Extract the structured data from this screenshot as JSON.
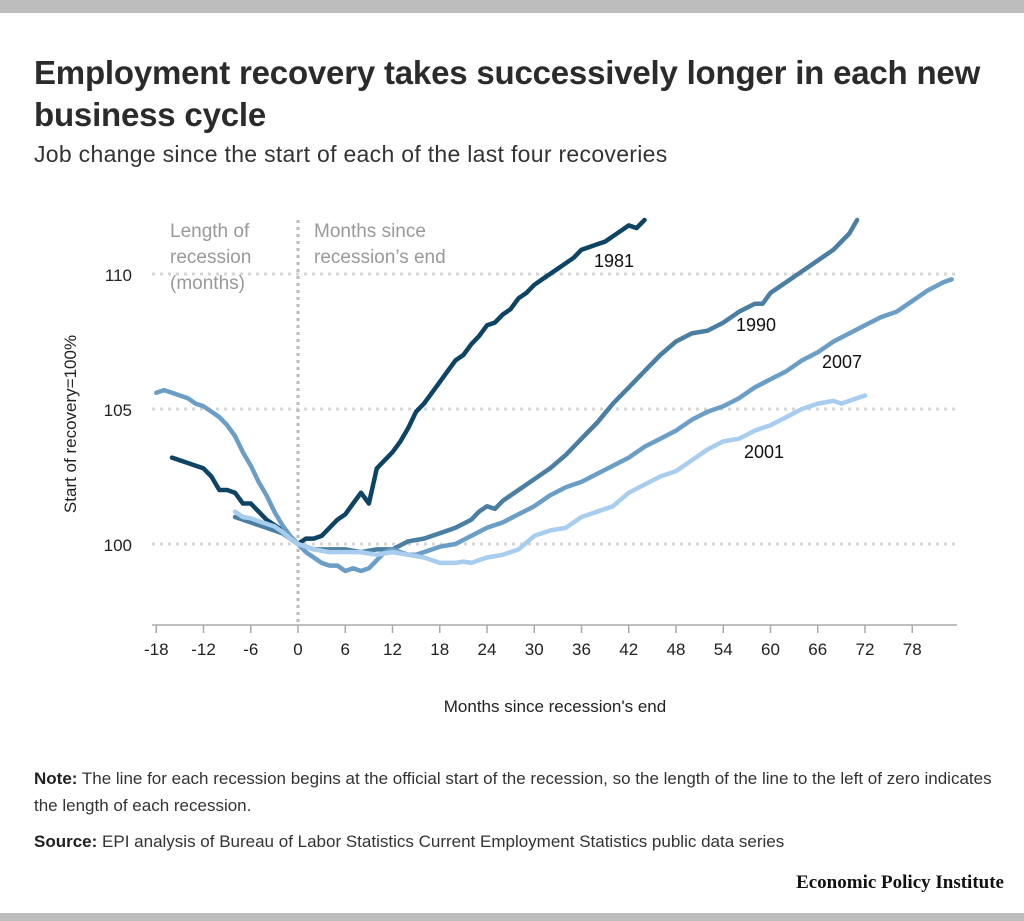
{
  "title": "Employment recovery takes successively longer in each new business cycle",
  "subtitle": "Job change since the start of each of the last four recoveries",
  "note_label": "Note:",
  "note_text": "The line for each recession begins at the official start of the recession, so the length of the line to the left of zero indicates the length of each recession.",
  "source_label": "Source:",
  "source_text": "EPI analysis of Bureau of Labor Statistics Current Employment Statistics public data series",
  "logo": "Economic Policy Institute",
  "chart_data": {
    "type": "line",
    "xlabel": "Months since recession's end",
    "ylabel": "Start of recovery=100%",
    "xlim": [
      -18,
      84
    ],
    "ylim": [
      97,
      112
    ],
    "xticks": [
      -18,
      -12,
      -6,
      0,
      6,
      12,
      18,
      24,
      30,
      36,
      42,
      48,
      54,
      60,
      66,
      72,
      78
    ],
    "yticks": [
      100,
      105,
      110
    ],
    "grid": "horizontal dotted",
    "annotations": {
      "left": [
        "Length of",
        "recession",
        "(months)"
      ],
      "right": [
        "Months since",
        "recession’s end"
      ]
    },
    "series": [
      {
        "name": "1981",
        "color": "#0d4466",
        "x": [
          -16,
          -14,
          -12,
          -11,
          -10,
          -9,
          -8,
          -7,
          -6,
          -5,
          -4,
          -3,
          -2,
          -1,
          0,
          1,
          2,
          3,
          4,
          5,
          6,
          7,
          8,
          9,
          10,
          11,
          12,
          13,
          14,
          15,
          16,
          17,
          18,
          19,
          20,
          21,
          22,
          23,
          24,
          25,
          26,
          27,
          28,
          29,
          30,
          31,
          32,
          33,
          34,
          35,
          36,
          37,
          38,
          39,
          40,
          41,
          42,
          43,
          44
        ],
        "y": [
          103.2,
          103.0,
          102.8,
          102.5,
          102.0,
          102.0,
          101.9,
          101.5,
          101.5,
          101.2,
          100.9,
          100.7,
          100.5,
          100.2,
          100.0,
          100.2,
          100.2,
          100.3,
          100.6,
          100.9,
          101.1,
          101.5,
          101.9,
          101.5,
          102.8,
          103.1,
          103.4,
          103.8,
          104.3,
          104.9,
          105.2,
          105.6,
          106.0,
          106.4,
          106.8,
          107.0,
          107.4,
          107.7,
          108.1,
          108.2,
          108.5,
          108.7,
          109.1,
          109.3,
          109.6,
          109.8,
          110.0,
          110.2,
          110.4,
          110.6,
          110.9,
          111.0,
          111.1,
          111.2,
          111.4,
          111.6,
          111.8,
          111.7,
          112.0
        ]
      },
      {
        "name": "1990",
        "color": "#4a7fa3",
        "x": [
          -8,
          -6,
          -4,
          -2,
          0,
          2,
          4,
          6,
          8,
          10,
          12,
          14,
          16,
          18,
          20,
          22,
          23,
          24,
          25,
          26,
          28,
          30,
          32,
          34,
          36,
          38,
          40,
          42,
          44,
          46,
          48,
          50,
          52,
          54,
          56,
          58,
          59,
          60,
          62,
          64,
          66,
          68,
          70,
          71
        ],
        "y": [
          101.0,
          100.8,
          100.6,
          100.4,
          100.0,
          99.8,
          99.8,
          99.8,
          99.7,
          99.8,
          99.8,
          100.1,
          100.2,
          100.4,
          100.6,
          100.9,
          101.2,
          101.4,
          101.3,
          101.6,
          102.0,
          102.4,
          102.8,
          103.3,
          103.9,
          104.5,
          105.2,
          105.8,
          106.4,
          107.0,
          107.5,
          107.8,
          107.9,
          108.2,
          108.6,
          108.9,
          108.9,
          109.3,
          109.7,
          110.1,
          110.5,
          110.9,
          111.5,
          112.0
        ]
      },
      {
        "name": "2007",
        "color": "#6b9ec6",
        "x": [
          -18,
          -17,
          -16,
          -15,
          -14,
          -13,
          -12,
          -11,
          -10,
          -9,
          -8,
          -7,
          -6,
          -5,
          -4,
          -3,
          -2,
          -1,
          0,
          1,
          2,
          3,
          4,
          5,
          6,
          7,
          8,
          9,
          10,
          11,
          12,
          13,
          14,
          15,
          16,
          18,
          20,
          22,
          24,
          26,
          28,
          30,
          32,
          34,
          36,
          38,
          40,
          42,
          44,
          46,
          48,
          50,
          52,
          54,
          56,
          58,
          60,
          62,
          64,
          66,
          68,
          70,
          72,
          74,
          76,
          78,
          80,
          82,
          83
        ],
        "y": [
          105.6,
          105.7,
          105.6,
          105.5,
          105.4,
          105.2,
          105.1,
          104.9,
          104.7,
          104.4,
          104.0,
          103.4,
          102.9,
          102.3,
          101.8,
          101.2,
          100.7,
          100.3,
          100.0,
          99.7,
          99.5,
          99.3,
          99.2,
          99.2,
          99.0,
          99.1,
          99.0,
          99.1,
          99.4,
          99.7,
          99.8,
          99.7,
          99.6,
          99.6,
          99.7,
          99.9,
          100.0,
          100.3,
          100.6,
          100.8,
          101.1,
          101.4,
          101.8,
          102.1,
          102.3,
          102.6,
          102.9,
          103.2,
          103.6,
          103.9,
          104.2,
          104.6,
          104.9,
          105.1,
          105.4,
          105.8,
          106.1,
          106.4,
          106.8,
          107.1,
          107.5,
          107.8,
          108.1,
          108.4,
          108.6,
          109.0,
          109.4,
          109.7,
          109.8
        ]
      },
      {
        "name": "2001",
        "color": "#a8cdee",
        "x": [
          -8,
          -7,
          -6,
          -5,
          -4,
          -3,
          -2,
          -1,
          0,
          2,
          4,
          6,
          8,
          10,
          12,
          14,
          16,
          18,
          20,
          21,
          22,
          24,
          26,
          27,
          28,
          30,
          32,
          34,
          36,
          38,
          40,
          42,
          44,
          46,
          48,
          50,
          52,
          54,
          56,
          58,
          60,
          62,
          64,
          66,
          68,
          69,
          70,
          72
        ],
        "y": [
          101.2,
          101.0,
          100.95,
          100.85,
          100.75,
          100.65,
          100.45,
          100.2,
          100.0,
          99.8,
          99.7,
          99.7,
          99.7,
          99.6,
          99.7,
          99.6,
          99.5,
          99.3,
          99.3,
          99.35,
          99.3,
          99.5,
          99.6,
          99.7,
          99.8,
          100.3,
          100.5,
          100.6,
          101.0,
          101.2,
          101.4,
          101.9,
          102.2,
          102.5,
          102.7,
          103.1,
          103.5,
          103.8,
          103.9,
          104.2,
          104.4,
          104.7,
          105.0,
          105.2,
          105.3,
          105.2,
          105.3,
          105.5
        ]
      }
    ]
  }
}
